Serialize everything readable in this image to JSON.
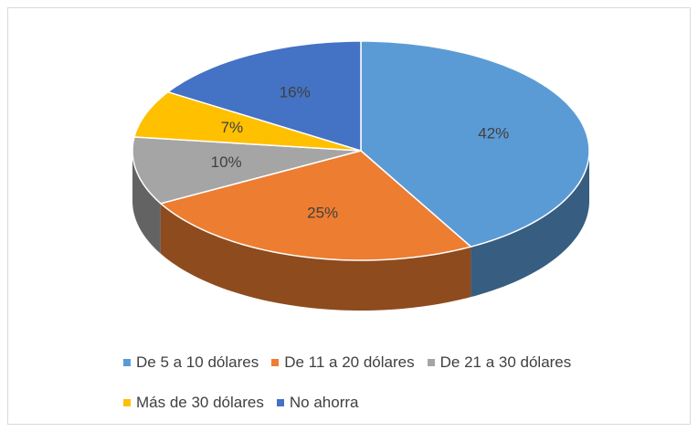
{
  "chart_data": {
    "type": "pie",
    "depth3d": true,
    "categories": [
      "De 5 a 10 dólares",
      "De 11 a 20 dólares",
      "De 21 a 30 dólares",
      "Más de 30 dólares",
      "No ahorra"
    ],
    "values": [
      42,
      25,
      10,
      7,
      16
    ],
    "value_labels": [
      "42%",
      "25%",
      "10%",
      "7%",
      "16%"
    ],
    "colors": [
      "#5b9bd5",
      "#ed7d31",
      "#a5a5a5",
      "#ffc000",
      "#4472c4"
    ],
    "legend": "bottom"
  }
}
